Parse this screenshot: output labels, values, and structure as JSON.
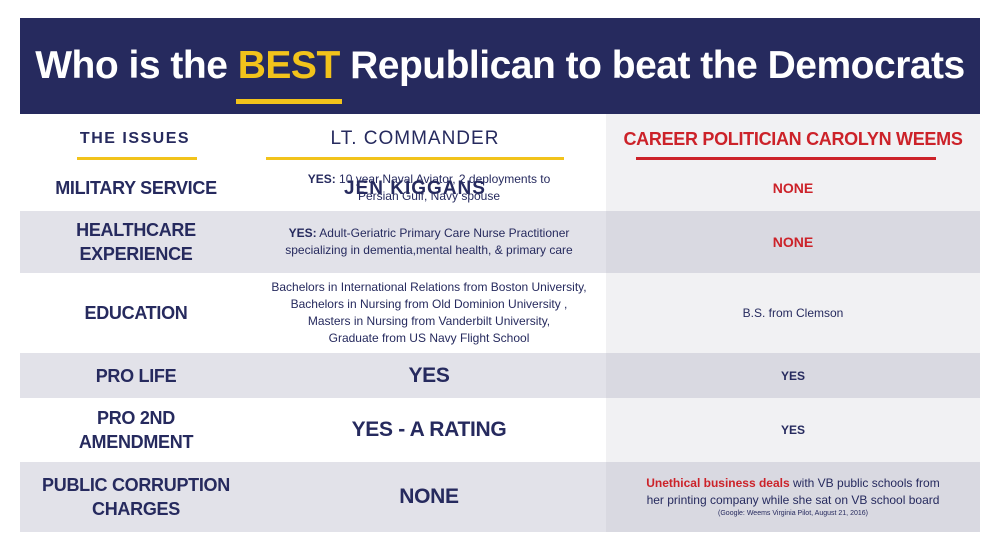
{
  "banner": {
    "title_prefix": "Who is the",
    "title_highlight": "BEST",
    "title_suffix": "Republican to beat the Democrats"
  },
  "headers": {
    "issues": "THE ISSUES",
    "jen_prefix": "LT. COMMANDER",
    "jen_name": "JEN KIGGANS",
    "carolyn": "CAREER POLITICIAN CAROLYN WEEMS"
  },
  "rows": {
    "military": {
      "issue": "MILITARY SERVICE",
      "jen_yes": "YES:",
      "jen_line1": "10 year Naval Aviator, 2 deployments to",
      "jen_line2": "Persian Gulf, Navy spouse",
      "carolyn": "NONE"
    },
    "healthcare": {
      "issue_line1": "HEALTHCARE",
      "issue_line2": "EXPERIENCE",
      "jen_yes": "YES:",
      "jen_line1": "Adult-Geriatric Primary Care Nurse Practitioner",
      "jen_line2": "specializing in dementia,mental health, & primary care",
      "carolyn": "NONE"
    },
    "education": {
      "issue": "EDUCATION",
      "jen_line1": "Bachelors in International Relations from Boston University,",
      "jen_line2": "Bachelors in Nursing from Old Dominion University ,",
      "jen_line3": "Masters in Nursing from Vanderbilt University,",
      "jen_line4": "Graduate from US Navy Flight School",
      "carolyn": "B.S. from Clemson"
    },
    "prolife": {
      "issue": "PRO LIFE",
      "jen": "YES",
      "carolyn": "YES"
    },
    "pro2nd": {
      "issue_line1": "PRO 2ND",
      "issue_line2": "AMENDMENT",
      "jen": "YES - A RATING",
      "carolyn": "YES"
    },
    "corruption": {
      "issue_line1": "PUBLIC CORRUPTION",
      "issue_line2": "CHARGES",
      "jen": "NONE",
      "carolyn_highlight": "Unethical business deals",
      "carolyn_line1_rest": "with VB public schools from",
      "carolyn_line2": "her printing company while she sat on VB school board",
      "carolyn_note": "(Google: Weems Virginia Pilot, August 21, 2016)"
    }
  },
  "colors": {
    "navy": "#262a5e",
    "gold": "#f2c31b",
    "red": "#cc2229"
  }
}
